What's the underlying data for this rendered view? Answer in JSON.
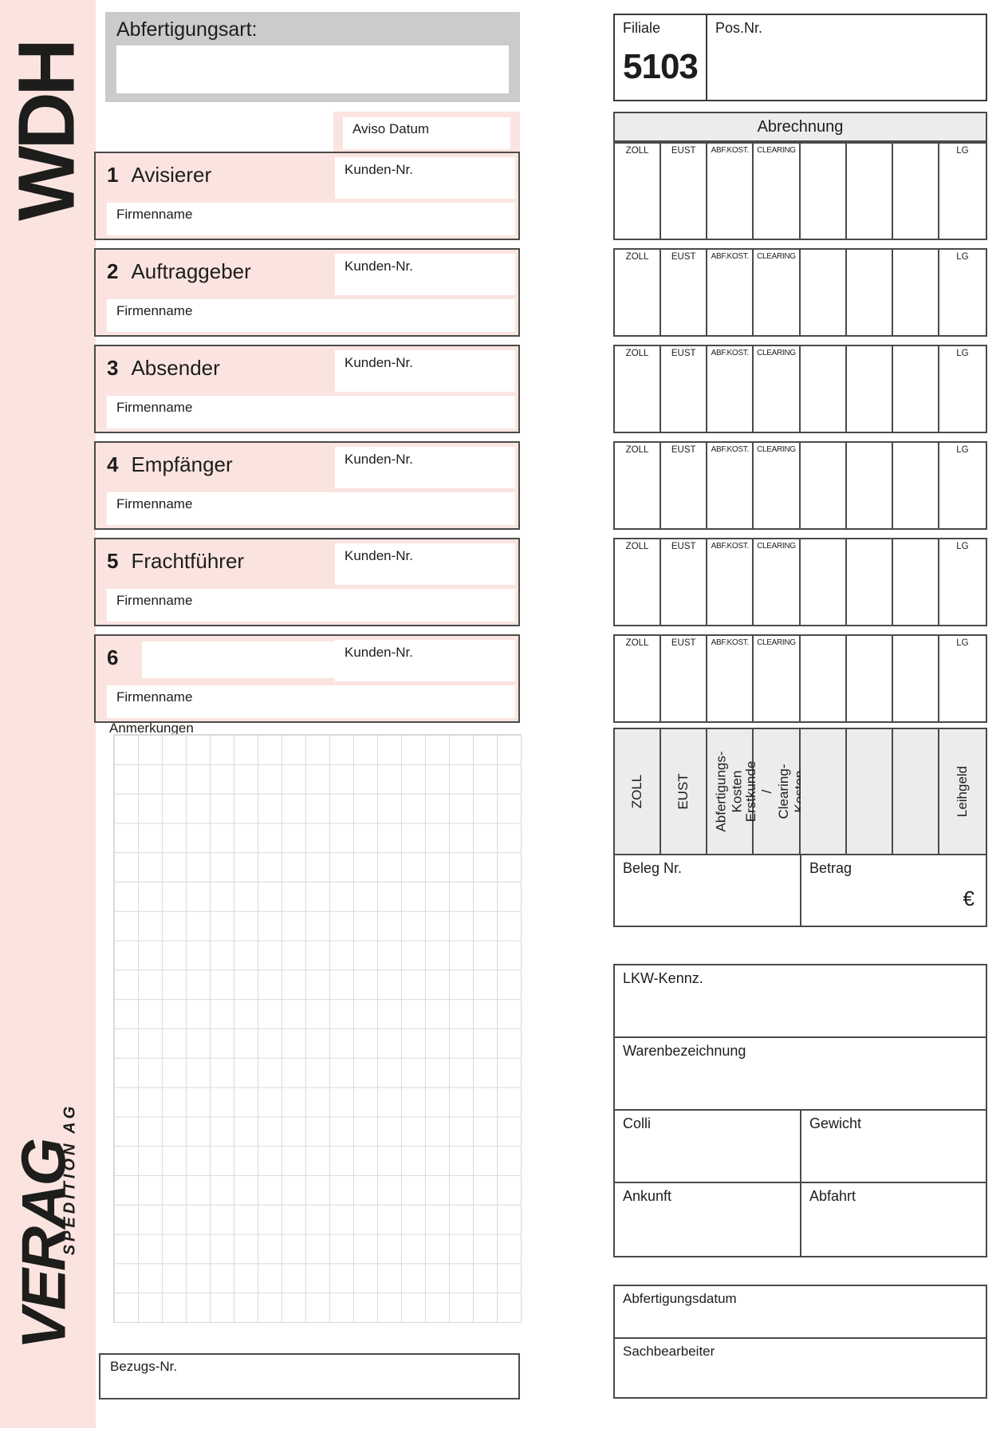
{
  "sidebar": {
    "logo": "WDH",
    "brand": "VERAG",
    "brand_subtitle": "SPEDITION AG"
  },
  "header": {
    "abfertigungsart_label": "Abfertigungsart:",
    "filiale_label": "Filiale",
    "filiale_value": "5103",
    "pos_nr_label": "Pos.Nr."
  },
  "aviso_label": "Aviso Datum",
  "sections": [
    {
      "number": "1",
      "title": "Avisierer",
      "kunden_nr_label": "Kunden-Nr.",
      "firmenname_label": "Firmenname"
    },
    {
      "number": "2",
      "title": "Auftraggeber",
      "kunden_nr_label": "Kunden-Nr.",
      "firmenname_label": "Firmenname"
    },
    {
      "number": "3",
      "title": "Absender",
      "kunden_nr_label": "Kunden-Nr.",
      "firmenname_label": "Firmenname"
    },
    {
      "number": "4",
      "title": "Empfänger",
      "kunden_nr_label": "Kunden-Nr.",
      "firmenname_label": "Firmenname"
    },
    {
      "number": "5",
      "title": "Frachtführer",
      "kunden_nr_label": "Kunden-Nr.",
      "firmenname_label": "Firmenname"
    },
    {
      "number": "6",
      "title": "",
      "kunden_nr_label": "Kunden-Nr.",
      "firmenname_label": "Firmenname"
    }
  ],
  "abrechnung": {
    "title": "Abrechnung",
    "column_headers": [
      "ZOLL",
      "EUST",
      "ABF.KOST.",
      "CLEARING",
      "",
      "",
      "",
      "LG"
    ],
    "row_count": 6,
    "footer_labels": [
      "ZOLL",
      "EUST",
      "Abfertigungs-\nKosten",
      "Erstkunde /\nClearing-Kosten",
      "",
      "",
      "",
      "Leihgeld"
    ],
    "beleg_nr_label": "Beleg Nr.",
    "betrag_label": "Betrag",
    "currency_symbol": "€"
  },
  "anmerkungen_label": "Anmerkungen",
  "bezugs_nr_label": "Bezugs-Nr.",
  "transport": {
    "lkw_kennz_label": "LKW-Kennz.",
    "warenbezeichnung_label": "Warenbezeichnung",
    "colli_label": "Colli",
    "gewicht_label": "Gewicht",
    "ankunft_label": "Ankunft",
    "abfahrt_label": "Abfahrt"
  },
  "abfertigung": {
    "abfertigungsdatum_label": "Abfertigungsdatum",
    "sachbearbeiter_label": "Sachbearbeiter"
  },
  "colors": {
    "pink": "#fbe4e0",
    "header_gray": "#cbcbcb",
    "table_gray": "#ececec",
    "border_dark": "#4a4a4a",
    "grid_line": "#d9d9d9",
    "text": "#1d1d1b"
  }
}
